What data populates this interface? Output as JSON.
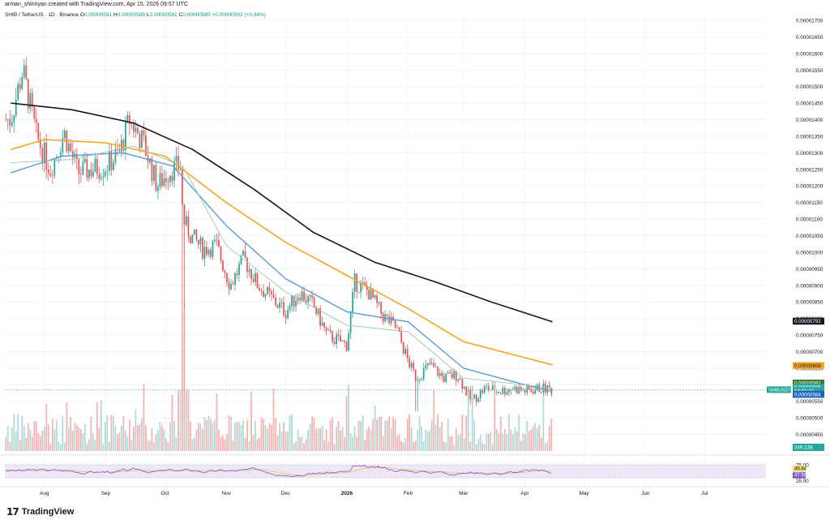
{
  "header": {
    "credit": "arman_shirinyan created with TradingView.com, Apr 15, 2026 09:57 UTC",
    "symbol": "SHIB / TetherUS · 1D · Binance",
    "open_label": "O",
    "open": "0.00000581",
    "high_label": "H",
    "high": "0.00000589",
    "low_label": "L",
    "low": "0.00000581",
    "close_label": "C",
    "close": "0.00000585",
    "change": "+0.00000002 (+0.34%)"
  },
  "brand": {
    "logo": "17",
    "name": "TradingView"
  },
  "colors": {
    "up": "#26a69a",
    "down": "#ef5350",
    "ma200": "#131722",
    "ma100": "#f5a623",
    "ma50": "#5b9bd5",
    "ma20": "#9cc7a3",
    "rsi": "#7e57c2",
    "rsi_ma": "#e6c25a",
    "rsi_band": "#ede7f6"
  },
  "chart_data": {
    "type": "candlestick",
    "title": "SHIB / TetherUS · 1D · Binance",
    "y_scale": {
      "min": 4e-06,
      "max": 1.7e-05,
      "step": 5e-07
    },
    "y_ticks": [
      "0.00001700",
      "0.00001650",
      "0.00001600",
      "0.00001550",
      "0.00001500",
      "0.00001450",
      "0.00001400",
      "0.00001350",
      "0.00001300",
      "0.00001250",
      "0.00001200",
      "0.00001150",
      "0.00001100",
      "0.00001050",
      "0.00001000",
      "0.00000950",
      "0.00000900",
      "0.00000850",
      "0.00000800",
      "0.00000750",
      "0.00000700",
      "0.00000650",
      "0.00000600",
      "0.00000550",
      "0.00000500",
      "0.00000450"
    ],
    "x_ticks": [
      "Aug",
      "Sep",
      "Oct",
      "Nov",
      "Dec",
      "2026",
      "Feb",
      "Mar",
      "Apr",
      "May",
      "Jun",
      "Jul"
    ],
    "price_path": [
      [
        "2025-07-15",
        1.4e-05
      ],
      [
        "2025-07-21",
        1.55e-05
      ],
      [
        "2025-07-28",
        1.35e-05
      ],
      [
        "2025-08-04",
        1.25e-05
      ],
      [
        "2025-08-11",
        1.36e-05
      ],
      [
        "2025-08-18",
        1.24e-05
      ],
      [
        "2025-08-25",
        1.25e-05
      ],
      [
        "2025-09-01",
        1.26e-05
      ],
      [
        "2025-09-08",
        1.3e-05
      ],
      [
        "2025-09-13",
        1.4e-05
      ],
      [
        "2025-09-20",
        1.33e-05
      ],
      [
        "2025-09-27",
        1.2e-05
      ],
      [
        "2025-10-04",
        1.25e-05
      ],
      [
        "2025-10-09",
        1.26e-05
      ],
      [
        "2025-10-10",
        1.1e-05
      ],
      [
        "2025-10-14",
        1.05e-05
      ],
      [
        "2025-10-20",
        1.01e-05
      ],
      [
        "2025-10-27",
        1.02e-05
      ],
      [
        "2025-11-03",
        9e-06
      ],
      [
        "2025-11-10",
        9.8e-06
      ],
      [
        "2025-11-17",
        9e-06
      ],
      [
        "2025-11-24",
        8.6e-06
      ],
      [
        "2025-12-01",
        8.2e-06
      ],
      [
        "2025-12-08",
        8.8e-06
      ],
      [
        "2025-12-15",
        8.4e-06
      ],
      [
        "2025-12-22",
        7.5e-06
      ],
      [
        "2026-01-01",
        7.2e-06
      ],
      [
        "2026-01-05",
        9.1e-06
      ],
      [
        "2026-01-12",
        8.8e-06
      ],
      [
        "2026-01-19",
        8.1e-06
      ],
      [
        "2026-01-26",
        7.7e-06
      ],
      [
        "2026-02-01",
        6.7e-06
      ],
      [
        "2026-02-05",
        6.2e-06
      ],
      [
        "2026-02-12",
        6.6e-06
      ],
      [
        "2026-02-19",
        6.2e-06
      ],
      [
        "2026-02-26",
        6.3e-06
      ],
      [
        "2026-03-05",
        5.5e-06
      ],
      [
        "2026-03-12",
        5.9e-06
      ],
      [
        "2026-03-19",
        5.8e-06
      ],
      [
        "2026-03-26",
        5.9e-06
      ],
      [
        "2026-04-02",
        5.8e-06
      ],
      [
        "2026-04-09",
        5.9e-06
      ],
      [
        "2026-04-15",
        5.85e-06
      ]
    ],
    "series": [
      {
        "name": "",
        "type": "sma",
        "values": [
          [
            "2025-07-15",
            1.45e-05
          ],
          [
            "2025-08-15",
            1.43e-05
          ],
          [
            "2025-09-15",
            1.39e-05
          ],
          [
            "2025-10-15",
            1.31e-05
          ],
          [
            "2025-11-15",
            1.19e-05
          ],
          [
            "2025-12-15",
            1.06e-05
          ],
          [
            "2026-01-15",
            9.7e-06
          ],
          [
            "2026-02-15",
            9.1e-06
          ],
          [
            "2026-03-15",
            8.5e-06
          ],
          [
            "2026-04-15",
            7.9e-06
          ]
        ]
      },
      {
        "name": "",
        "type": "sma",
        "values": [
          [
            "2025-07-15",
            1.31e-05
          ],
          [
            "2025-08-01",
            1.34e-05
          ],
          [
            "2025-09-01",
            1.33e-05
          ],
          [
            "2025-10-01",
            1.29e-05
          ],
          [
            "2025-11-01",
            1.15e-05
          ],
          [
            "2025-12-01",
            1.03e-05
          ],
          [
            "2026-01-01",
            9.3e-06
          ],
          [
            "2026-02-01",
            8.3e-06
          ],
          [
            "2026-03-01",
            7.3e-06
          ],
          [
            "2026-04-15",
            6.6e-06
          ]
        ]
      },
      {
        "name": "",
        "type": "sma",
        "values": [
          [
            "2025-07-15",
            1.24e-05
          ],
          [
            "2025-08-10",
            1.29e-05
          ],
          [
            "2025-09-10",
            1.3e-05
          ],
          [
            "2025-10-05",
            1.26e-05
          ],
          [
            "2025-11-01",
            1.08e-05
          ],
          [
            "2025-12-01",
            9.2e-06
          ],
          [
            "2026-01-01",
            8.2e-06
          ],
          [
            "2026-02-01",
            7.9e-06
          ],
          [
            "2026-03-01",
            6.5e-06
          ],
          [
            "2026-04-01",
            6e-06
          ],
          [
            "2026-04-15",
            5.8e-06
          ]
        ]
      },
      {
        "name": "",
        "type": "sma",
        "values": [
          [
            "2025-07-15",
            1.27e-05
          ],
          [
            "2025-08-15",
            1.28e-05
          ],
          [
            "2025-09-15",
            1.32e-05
          ],
          [
            "2025-10-10",
            1.26e-05
          ],
          [
            "2025-11-01",
            1.02e-05
          ],
          [
            "2025-12-01",
            8.8e-06
          ],
          [
            "2026-01-01",
            7.8e-06
          ],
          [
            "2026-02-01",
            7.6e-06
          ],
          [
            "2026-03-01",
            6.2e-06
          ],
          [
            "2026-04-15",
            5.9e-06
          ]
        ]
      }
    ],
    "price_labels": [
      {
        "value": "0.00000792",
        "bg": "#131722",
        "fg": "#ffffff"
      },
      {
        "value": "0.00000658",
        "bg": "#f5a623",
        "fg": "#131722"
      },
      {
        "value": "0.00000592",
        "bg": "#2e7d32",
        "fg": "#ffffff"
      },
      {
        "value": "0.00000585",
        "bg": "#26a69a",
        "fg": "#ffffff"
      },
      {
        "value": "14:02:22",
        "bg": "#26a69a",
        "fg": "#ffffff"
      },
      {
        "value": "0.00000584",
        "bg": "#1e63c6",
        "fg": "#ffffff"
      }
    ],
    "symbol_tag": "SHIBUSDT",
    "volume_label": "249.22B",
    "rsi": {
      "ticks": [
        "75.00",
        "25.00"
      ],
      "upper": 75,
      "lower": 25,
      "value": 49.84,
      "value_label": "49.84",
      "ma": 47.66,
      "ma_label": "47.66"
    },
    "grid": true
  }
}
